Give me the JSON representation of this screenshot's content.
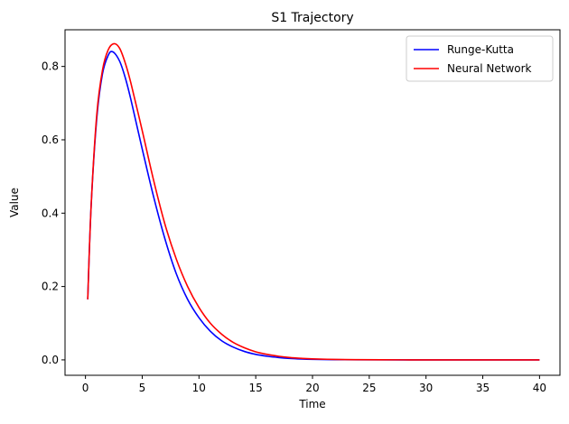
{
  "chart_data": {
    "type": "line",
    "title": "S1 Trajectory",
    "xlabel": "Time",
    "ylabel": "Value",
    "xlim": [
      -1.8,
      41.8
    ],
    "ylim": [
      -0.042,
      0.9
    ],
    "x_ticks": [
      0,
      5,
      10,
      15,
      20,
      25,
      30,
      35,
      40
    ],
    "y_ticks": [
      0.0,
      0.2,
      0.4,
      0.6,
      0.8
    ],
    "x_tick_labels": [
      "0",
      "5",
      "10",
      "15",
      "20",
      "25",
      "30",
      "35",
      "40"
    ],
    "y_tick_labels": [
      "0.0",
      "0.2",
      "0.4",
      "0.6",
      "0.8"
    ],
    "grid": false,
    "legend_position": "top-right",
    "series": [
      {
        "name": "Runge-Kutta",
        "color": "#0000ff",
        "x": [
          0.2,
          0.5,
          1.0,
          1.5,
          2.0,
          2.4,
          3.0,
          3.5,
          4.0,
          5.0,
          6.0,
          7.0,
          8.0,
          9.0,
          10.0,
          11.0,
          12.0,
          13.0,
          14.0,
          15.0,
          16.0,
          17.0,
          18.0,
          19.0,
          20.0,
          22.0,
          24.0,
          26.0,
          28.0,
          30.0,
          35.0,
          40.0
        ],
        "y": [
          0.165,
          0.42,
          0.66,
          0.78,
          0.83,
          0.84,
          0.815,
          0.77,
          0.71,
          0.575,
          0.445,
          0.33,
          0.235,
          0.165,
          0.115,
          0.078,
          0.052,
          0.035,
          0.023,
          0.015,
          0.01,
          0.0065,
          0.004,
          0.0025,
          0.0016,
          0.0006,
          0.0002,
          0.0001,
          0.0,
          0.0,
          0.0,
          0.0
        ]
      },
      {
        "name": "Neural Network",
        "color": "#ff0000",
        "x": [
          0.2,
          0.5,
          1.0,
          1.5,
          2.0,
          2.5,
          3.0,
          3.5,
          4.0,
          5.0,
          6.0,
          7.0,
          8.0,
          9.0,
          10.0,
          11.0,
          12.0,
          13.0,
          14.0,
          15.0,
          16.0,
          17.0,
          18.0,
          19.0,
          20.0,
          22.0,
          24.0,
          26.0,
          28.0,
          30.0,
          35.0,
          40.0
        ],
        "y": [
          0.165,
          0.42,
          0.67,
          0.79,
          0.845,
          0.862,
          0.85,
          0.81,
          0.755,
          0.625,
          0.49,
          0.37,
          0.275,
          0.2,
          0.143,
          0.1,
          0.07,
          0.048,
          0.033,
          0.022,
          0.015,
          0.01,
          0.0065,
          0.0043,
          0.0028,
          0.0012,
          0.0005,
          0.0002,
          0.0001,
          0.0,
          0.0,
          0.0
        ]
      }
    ]
  }
}
